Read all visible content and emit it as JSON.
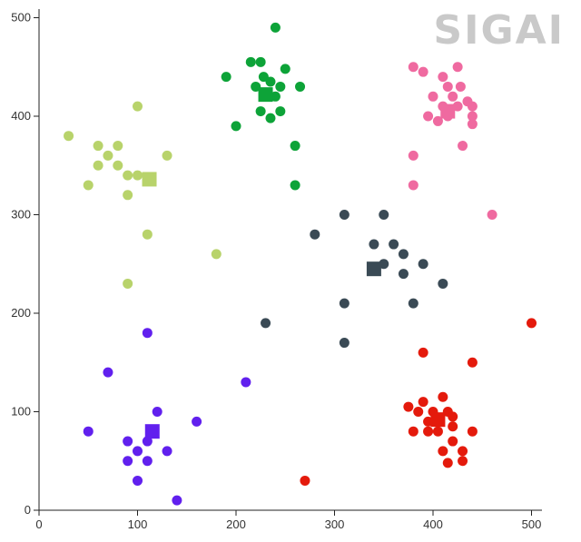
{
  "logo": {
    "text": "SIGAI"
  },
  "chart_data": {
    "type": "scatter",
    "xlim": [
      0,
      510
    ],
    "ylim": [
      0,
      510
    ],
    "x_ticks": [
      0,
      100,
      200,
      300,
      400,
      500
    ],
    "y_ticks": [
      0,
      100,
      200,
      300,
      400,
      500
    ],
    "grid": false,
    "clusters": [
      {
        "color": "#b8d36b",
        "centroid": [
          112,
          336
        ],
        "points": [
          [
            30,
            380
          ],
          [
            60,
            370
          ],
          [
            80,
            370
          ],
          [
            70,
            360
          ],
          [
            60,
            350
          ],
          [
            80,
            350
          ],
          [
            50,
            330
          ],
          [
            90,
            340
          ],
          [
            100,
            340
          ],
          [
            90,
            320
          ],
          [
            100,
            410
          ],
          [
            130,
            360
          ],
          [
            110,
            280
          ],
          [
            90,
            230
          ],
          [
            180,
            260
          ]
        ]
      },
      {
        "color": "#0da338",
        "centroid": [
          230,
          422
        ],
        "points": [
          [
            240,
            490
          ],
          [
            190,
            440
          ],
          [
            215,
            455
          ],
          [
            225,
            455
          ],
          [
            250,
            448
          ],
          [
            228,
            440
          ],
          [
            235,
            435
          ],
          [
            220,
            430
          ],
          [
            245,
            430
          ],
          [
            265,
            430
          ],
          [
            230,
            420
          ],
          [
            240,
            420
          ],
          [
            225,
            405
          ],
          [
            245,
            405
          ],
          [
            235,
            398
          ],
          [
            200,
            390
          ],
          [
            260,
            370
          ],
          [
            260,
            330
          ]
        ]
      },
      {
        "color": "#ef6aa0",
        "centroid": [
          415,
          405
        ],
        "points": [
          [
            380,
            450
          ],
          [
            390,
            445
          ],
          [
            410,
            440
          ],
          [
            425,
            450
          ],
          [
            400,
            420
          ],
          [
            415,
            430
          ],
          [
            428,
            430
          ],
          [
            420,
            420
          ],
          [
            435,
            415
          ],
          [
            410,
            410
          ],
          [
            425,
            410
          ],
          [
            440,
            410
          ],
          [
            395,
            400
          ],
          [
            415,
            400
          ],
          [
            440,
            400
          ],
          [
            405,
            395
          ],
          [
            440,
            392
          ],
          [
            430,
            370
          ],
          [
            380,
            360
          ],
          [
            380,
            330
          ],
          [
            460,
            300
          ]
        ]
      },
      {
        "color": "#3a4a55",
        "centroid": [
          340,
          245
        ],
        "points": [
          [
            310,
            300
          ],
          [
            350,
            300
          ],
          [
            280,
            280
          ],
          [
            340,
            270
          ],
          [
            360,
            270
          ],
          [
            370,
            260
          ],
          [
            350,
            250
          ],
          [
            390,
            250
          ],
          [
            370,
            240
          ],
          [
            410,
            230
          ],
          [
            310,
            210
          ],
          [
            380,
            210
          ],
          [
            230,
            190
          ],
          [
            310,
            170
          ]
        ]
      },
      {
        "color": "#6120ee",
        "centroid": [
          115,
          80
        ],
        "points": [
          [
            110,
            180
          ],
          [
            70,
            140
          ],
          [
            210,
            130
          ],
          [
            120,
            100
          ],
          [
            160,
            90
          ],
          [
            50,
            80
          ],
          [
            110,
            70
          ],
          [
            90,
            70
          ],
          [
            100,
            60
          ],
          [
            130,
            60
          ],
          [
            90,
            50
          ],
          [
            110,
            50
          ],
          [
            100,
            30
          ],
          [
            140,
            10
          ]
        ]
      },
      {
        "color": "#e41a0c",
        "centroid": [
          405,
          92
        ],
        "points": [
          [
            500,
            190
          ],
          [
            390,
            160
          ],
          [
            440,
            150
          ],
          [
            410,
            115
          ],
          [
            390,
            110
          ],
          [
            375,
            105
          ],
          [
            385,
            100
          ],
          [
            400,
            100
          ],
          [
            415,
            100
          ],
          [
            395,
            90
          ],
          [
            405,
            90
          ],
          [
            420,
            95
          ],
          [
            405,
            80
          ],
          [
            420,
            85
          ],
          [
            395,
            80
          ],
          [
            380,
            80
          ],
          [
            440,
            80
          ],
          [
            420,
            70
          ],
          [
            410,
            60
          ],
          [
            430,
            60
          ],
          [
            430,
            50
          ],
          [
            415,
            48
          ],
          [
            270,
            30
          ]
        ]
      }
    ]
  }
}
